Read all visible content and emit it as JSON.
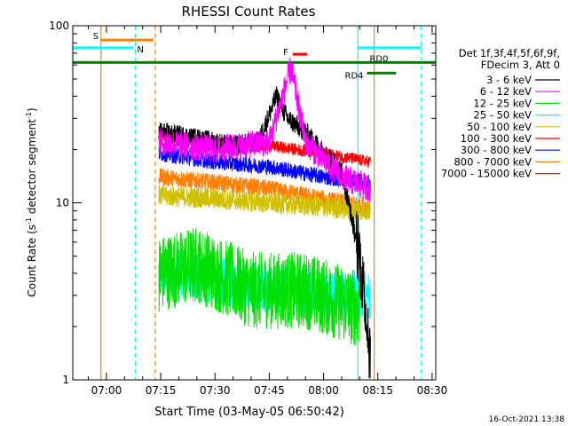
{
  "chart_data": {
    "type": "line",
    "title": "RHESSI Count Rates",
    "xlabel": "Start Time (03-May-05 06:50:42)",
    "ylabel_base": "Count Rate (s",
    "ylabel_sup1": "-1",
    "ylabel_mid": " detector segment",
    "ylabel_sup2": "-1",
    "ylabel_end": ")",
    "y_scale": "log",
    "ylim": [
      1,
      100
    ],
    "xlim": [
      "06:50:42",
      "08:31:00"
    ],
    "x_ticks": [
      "07:00",
      "07:15",
      "07:30",
      "07:45",
      "08:00",
      "08:15",
      "08:30"
    ],
    "y_ticks": [
      "1",
      "10",
      "100"
    ],
    "data_start": "07:14:30",
    "data_end": "08:13:30",
    "legend": {
      "header": [
        "Det 1f,3f,4f,5f,6f,9f,",
        "FDecim 3, Att 0"
      ],
      "placement": "right"
    },
    "series": [
      {
        "name": "3 - 6 keV",
        "color": "#000000",
        "values": [
          {
            "x": "07:15",
            "y": 25
          },
          {
            "x": "07:25",
            "y": 23
          },
          {
            "x": "07:35",
            "y": 21
          },
          {
            "x": "07:42",
            "y": 22
          },
          {
            "x": "07:47",
            "y": 40
          },
          {
            "x": "07:50",
            "y": 30
          },
          {
            "x": "07:55",
            "y": 25
          },
          {
            "x": "08:05",
            "y": 15
          },
          {
            "x": "08:10",
            "y": 5
          },
          {
            "x": "08:13",
            "y": 1.4
          }
        ]
      },
      {
        "name": "6 - 12 keV",
        "color": "#ff00ff",
        "values": [
          {
            "x": "07:15",
            "y": 22
          },
          {
            "x": "07:30",
            "y": 20
          },
          {
            "x": "07:45",
            "y": 22
          },
          {
            "x": "07:51",
            "y": 58
          },
          {
            "x": "07:55",
            "y": 22
          },
          {
            "x": "08:05",
            "y": 14
          },
          {
            "x": "08:13",
            "y": 12
          }
        ]
      },
      {
        "name": "12 - 25 keV",
        "color": "#00e000",
        "values": [
          {
            "x": "07:15",
            "y": 4
          },
          {
            "x": "07:25",
            "y": 4.5
          },
          {
            "x": "07:40",
            "y": 3.2
          },
          {
            "x": "07:55",
            "y": 3.2
          },
          {
            "x": "08:10",
            "y": 2.5
          }
        ]
      },
      {
        "name": "25 - 50 keV",
        "color": "#00ffff",
        "values": [
          {
            "x": "07:15",
            "y": 4.1
          },
          {
            "x": "07:30",
            "y": 3.6
          },
          {
            "x": "07:45",
            "y": 3.3
          },
          {
            "x": "08:00",
            "y": 3.1
          },
          {
            "x": "08:13",
            "y": 3.0
          }
        ]
      },
      {
        "name": "50 - 100 keV",
        "color": "#d0c000",
        "values": [
          {
            "x": "07:15",
            "y": 11
          },
          {
            "x": "07:30",
            "y": 10.5
          },
          {
            "x": "07:45",
            "y": 10
          },
          {
            "x": "08:00",
            "y": 9.5
          },
          {
            "x": "08:13",
            "y": 9
          }
        ]
      },
      {
        "name": "100 - 300 keV",
        "color": "#ff0000",
        "values": [
          {
            "x": "07:15",
            "y": 24
          },
          {
            "x": "07:30",
            "y": 22
          },
          {
            "x": "07:45",
            "y": 21
          },
          {
            "x": "08:00",
            "y": 19
          },
          {
            "x": "08:13",
            "y": 17
          }
        ]
      },
      {
        "name": "300 - 800 keV",
        "color": "#0000ff",
        "values": [
          {
            "x": "07:15",
            "y": 19
          },
          {
            "x": "07:30",
            "y": 17
          },
          {
            "x": "07:45",
            "y": 16
          },
          {
            "x": "08:00",
            "y": 14
          },
          {
            "x": "08:13",
            "y": 13
          }
        ]
      },
      {
        "name": "800 - 7000 keV",
        "color": "#ff8000",
        "values": [
          {
            "x": "07:15",
            "y": 14
          },
          {
            "x": "07:30",
            "y": 13
          },
          {
            "x": "07:45",
            "y": 12
          },
          {
            "x": "08:00",
            "y": 10.5
          },
          {
            "x": "08:13",
            "y": 9.5
          }
        ]
      },
      {
        "name": "7000 - 15000 keV",
        "color": "#8b4513",
        "values": []
      }
    ],
    "bars": [
      {
        "label": "S",
        "color": "#ff8000",
        "x0": "06:58:30",
        "x1": "07:13:00",
        "y": 83
      },
      {
        "label": "N",
        "color": "#00ffff",
        "x0": "06:50:42",
        "x1": "07:07:30",
        "y": 75
      },
      {
        "label": "",
        "color": "#00ffff",
        "x0": "08:09:30",
        "x1": "08:27:00",
        "y": 75
      },
      {
        "label": "RD0",
        "color": "#008000",
        "x0": "06:50:42",
        "x1": "08:31:00",
        "y": 62
      },
      {
        "label": "F",
        "color": "#ff0000",
        "x0": "07:51:30",
        "x1": "07:55:30",
        "y": 69
      },
      {
        "label": "RD4",
        "color": "#008000",
        "x0": "08:12:00",
        "x1": "08:20:00",
        "y": 54
      }
    ],
    "vlines": [
      {
        "x": "06:58:30",
        "color": "#ff8000",
        "style": "solid"
      },
      {
        "x": "07:08:00",
        "color": "#00ffff",
        "style": "dashed"
      },
      {
        "x": "07:13:30",
        "color": "#ff8000",
        "style": "dashed"
      },
      {
        "x": "08:09:30",
        "color": "#00ffff",
        "style": "solid"
      },
      {
        "x": "08:14:00",
        "color": "#ff8000",
        "style": "solid"
      },
      {
        "x": "08:27:00",
        "color": "#00ffff",
        "style": "dashed"
      }
    ],
    "grid": false
  },
  "footer": {
    "date_stamp": "16-Oct-2021 13:38"
  }
}
